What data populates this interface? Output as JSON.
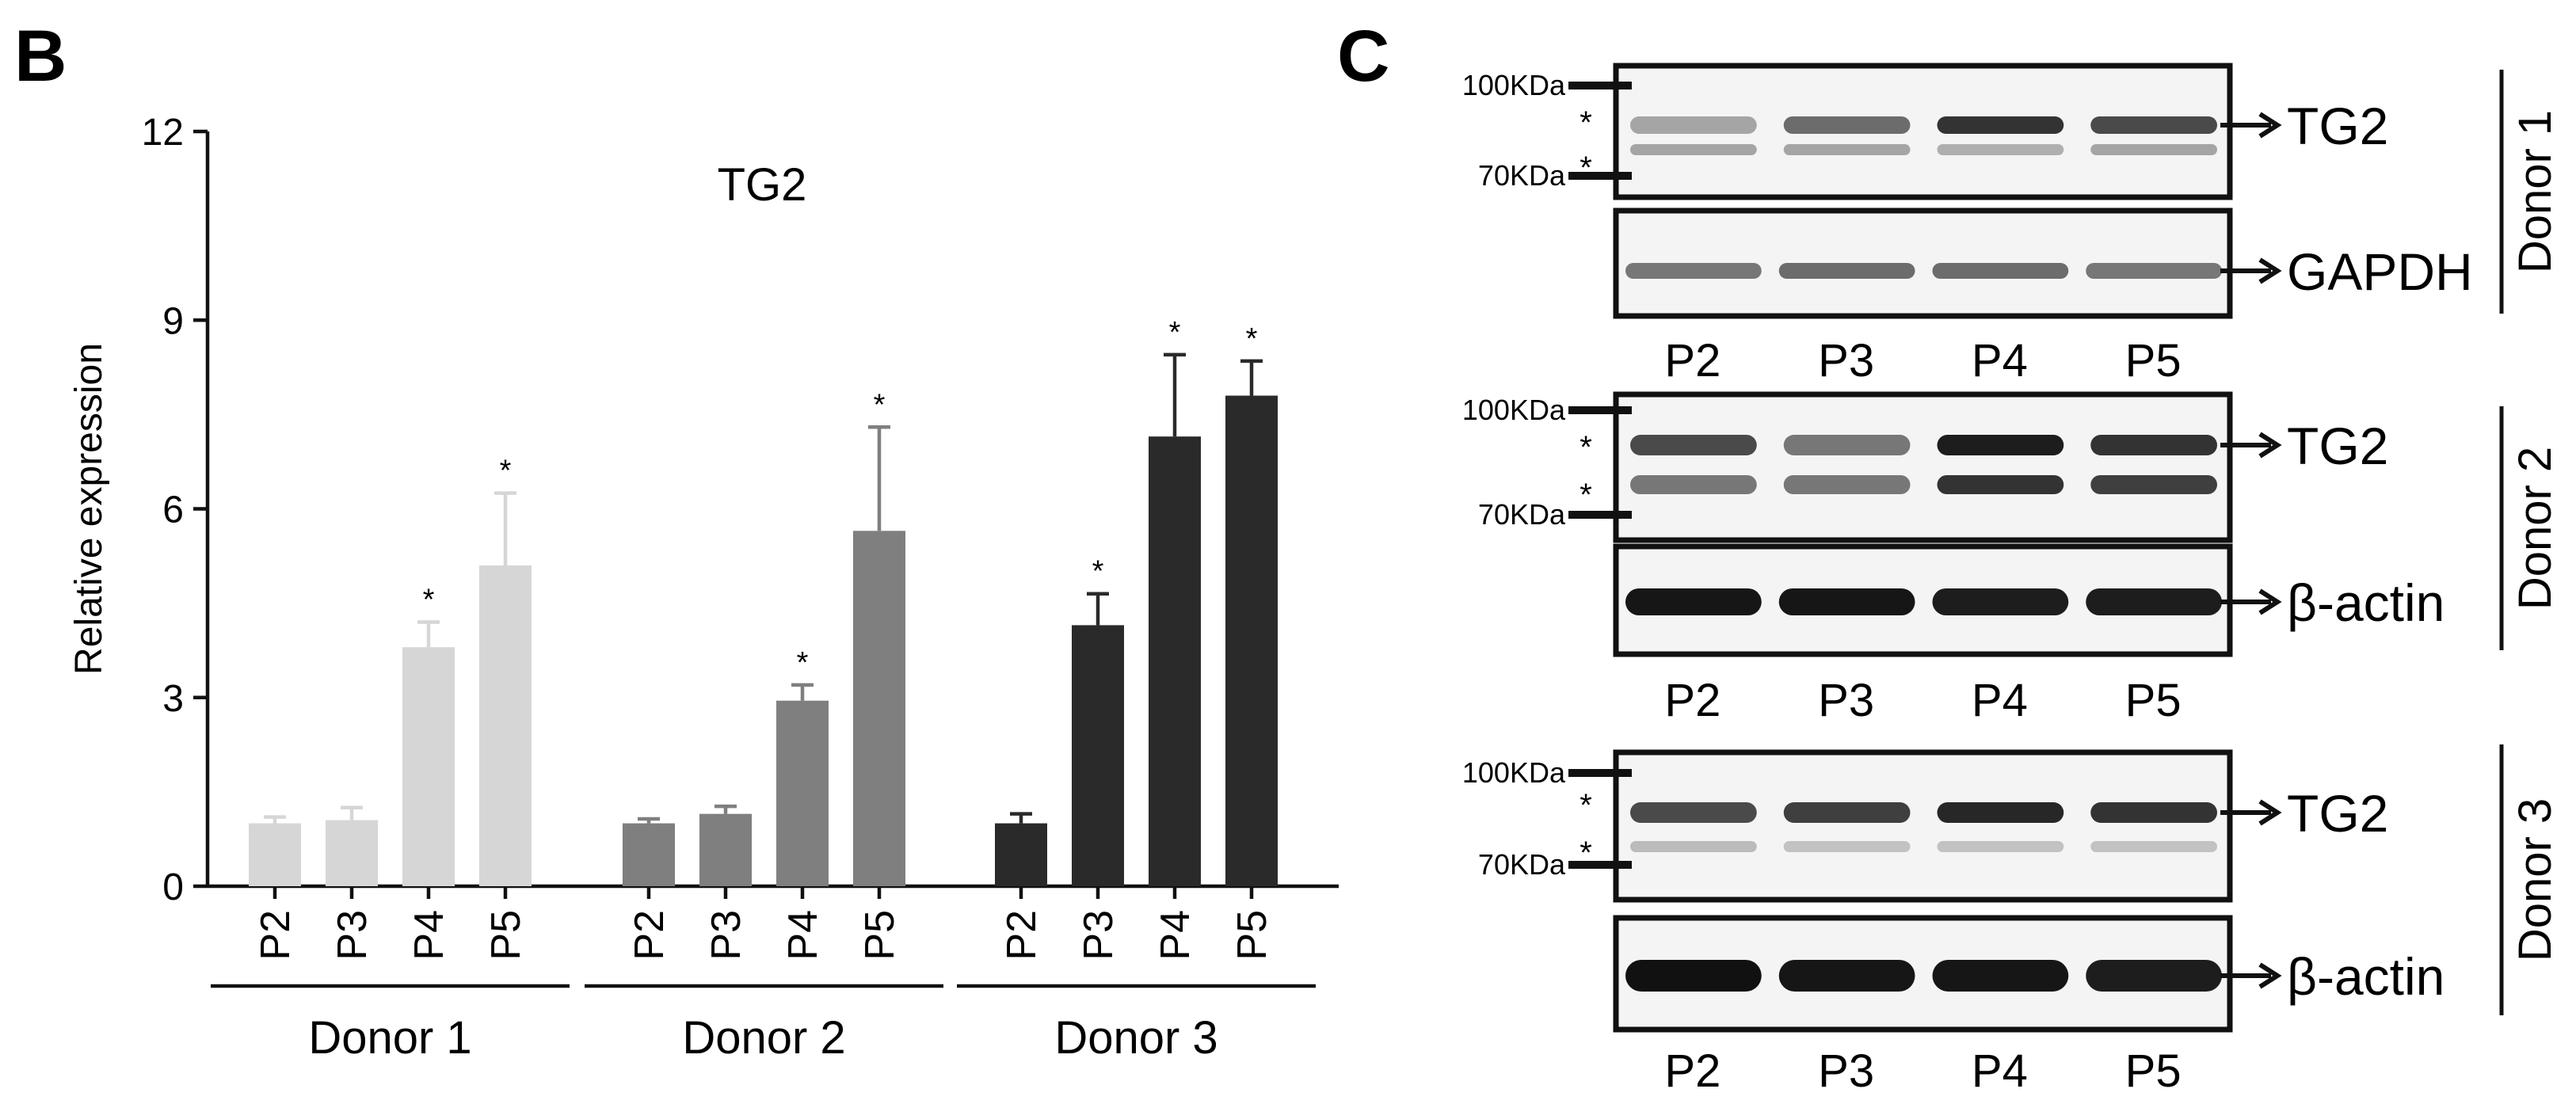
{
  "panels": {
    "B": {
      "label": "B",
      "chart_data": {
        "type": "bar",
        "title": "TG2",
        "ylabel": "Relative expression",
        "xlabel": "",
        "ylim": [
          0,
          12
        ],
        "yticks": [
          0,
          3,
          6,
          9,
          12
        ],
        "grid": false,
        "groups": [
          {
            "name": "Donor 1",
            "color": "#d6d6d6",
            "categories": [
              "P2",
              "P3",
              "P4",
              "P5"
            ],
            "values": [
              1.0,
              1.05,
              3.8,
              5.1
            ],
            "errors": [
              0.1,
              0.2,
              0.4,
              1.15
            ],
            "significant": [
              false,
              false,
              true,
              true
            ]
          },
          {
            "name": "Donor 2",
            "color": "#7f7f7f",
            "categories": [
              "P2",
              "P3",
              "P4",
              "P5"
            ],
            "values": [
              1.0,
              1.15,
              2.95,
              5.65
            ],
            "errors": [
              0.07,
              0.12,
              0.25,
              1.65
            ],
            "significant": [
              false,
              false,
              true,
              true
            ]
          },
          {
            "name": "Donor 3",
            "color": "#2a2a2a",
            "categories": [
              "P2",
              "P3",
              "P4",
              "P5"
            ],
            "values": [
              1.0,
              4.15,
              7.15,
              7.8
            ],
            "errors": [
              0.15,
              0.5,
              1.3,
              0.55
            ],
            "significant": [
              false,
              true,
              true,
              true
            ]
          }
        ],
        "significance_marker": "*"
      }
    },
    "C": {
      "label": "C",
      "blots": [
        {
          "donor": "Donor 1",
          "target": "TG2",
          "loading_control": "GAPDH",
          "marker_high": "100KDa",
          "marker_low": "70KDa",
          "band_marker": "*",
          "lanes": [
            "P2",
            "P3",
            "P4",
            "P5"
          ]
        },
        {
          "donor": "Donor 2",
          "target": "TG2",
          "loading_control": "β-actin",
          "marker_high": "100KDa",
          "marker_low": "70KDa",
          "band_marker": "*",
          "lanes": [
            "P2",
            "P3",
            "P4",
            "P5"
          ]
        },
        {
          "donor": "Donor 3",
          "target": "TG2",
          "loading_control": "β-actin",
          "marker_high": "100KDa",
          "marker_low": "70KDa",
          "band_marker": "*",
          "lanes": [
            "P2",
            "P3",
            "P4",
            "P5"
          ]
        }
      ]
    }
  }
}
